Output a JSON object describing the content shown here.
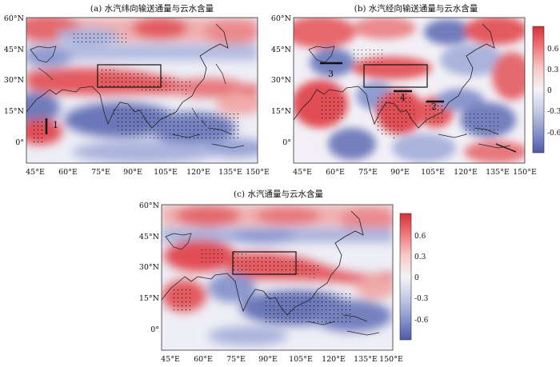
{
  "panels": [
    {
      "id": "a",
      "title": "(a) 水汽纬向输送通量与云水含量",
      "markers": [
        "1"
      ],
      "lat_ticks": [
        "60°N",
        "45°N",
        "30°N",
        "15°N",
        "0°"
      ],
      "lon_ticks": [
        "45°E",
        "60°E",
        "75°E",
        "90°E",
        "105°E",
        "120°E",
        "135°E",
        "150°E"
      ]
    },
    {
      "id": "b",
      "title": "(b) 水汽经向输送通量与云水含量",
      "markers": [
        "3",
        "4",
        "2"
      ],
      "lat_ticks": [
        "60°N",
        "45°N",
        "30°N",
        "15°N",
        "0°"
      ],
      "lon_ticks": [
        "45°E",
        "60°E",
        "75°E",
        "90°E",
        "105°E",
        "120°E",
        "135°E",
        "150°E"
      ]
    },
    {
      "id": "c",
      "title": "(c) 水汽通量与云水含量",
      "markers": [],
      "lat_ticks": [
        "60°N",
        "45°N",
        "30°N",
        "15°N",
        "0°"
      ],
      "lon_ticks": [
        "45°E",
        "60°E",
        "75°E",
        "90°E",
        "105°E",
        "120°E",
        "135°E",
        "150°E"
      ]
    }
  ],
  "colorbar": {
    "labels": [
      "0.6",
      "0.3",
      "0",
      "-0.3",
      "-0.6"
    ],
    "colors": [
      "#d7303a",
      "#ef7b7b",
      "#f9c7c7",
      "#f4f4f7",
      "#c4cbe6",
      "#8b97cd",
      "#4e5aa6"
    ]
  },
  "map_colors": {
    "strong_red": "#e05358",
    "light_red": "#f3a7a7",
    "neutral": "#eeeef6",
    "light_blue": "#b7bfe0",
    "strong_blue": "#6471b4"
  }
}
